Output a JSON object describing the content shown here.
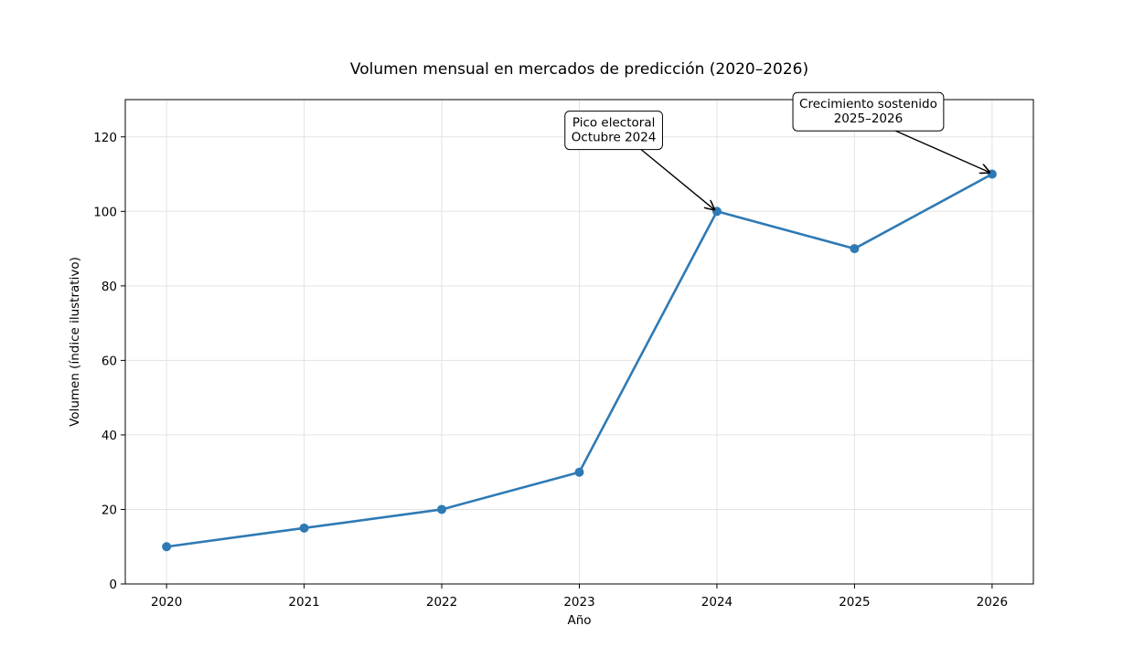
{
  "chart_data": {
    "type": "line",
    "title": "Volumen mensual en mercados de predicción (2020–2026)",
    "xlabel": "Año",
    "ylabel": "Volumen (índice ilustrativo)",
    "x": [
      "2020",
      "2021",
      "2022",
      "2023",
      "2024",
      "2025",
      "2026"
    ],
    "xlim": [
      2019.7,
      2026.3
    ],
    "ylim": [
      0,
      130
    ],
    "yticks": [
      0,
      20,
      40,
      60,
      80,
      100,
      120
    ],
    "grid": true,
    "series": [
      {
        "values": [
          10,
          15,
          20,
          30,
          100,
          90,
          110
        ],
        "color": "#2e7ab5",
        "marker": "circle"
      }
    ],
    "annotations": [
      {
        "lines": [
          "Pico electoral",
          "Octubre 2024"
        ],
        "point": {
          "x": 2024,
          "y": 100
        },
        "text_at": {
          "x": 2023.25,
          "y": 122
        }
      },
      {
        "lines": [
          "Crecimiento sostenido",
          "2025–2026"
        ],
        "point": {
          "x": 2026,
          "y": 110
        },
        "text_at": {
          "x": 2025.1,
          "y": 127
        }
      }
    ]
  }
}
